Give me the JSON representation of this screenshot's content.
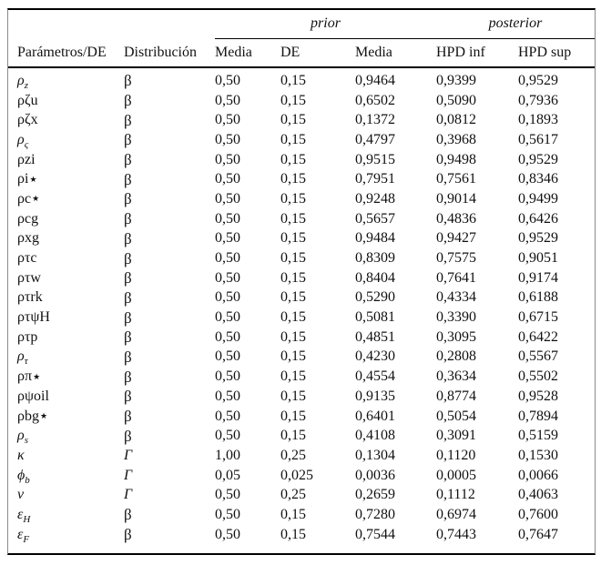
{
  "table": {
    "groups": {
      "prior": "prior",
      "posterior": "posterior"
    },
    "col_headers": [
      "Parámetros/DE",
      "Distribución",
      "Media",
      "DE",
      "Media",
      "HPD inf",
      "HPD sup"
    ],
    "rows": [
      {
        "param": [
          {
            "t": "ρ",
            "it": 1
          },
          {
            "t": "z",
            "sub": 1,
            "it": 1
          }
        ],
        "dist": "β",
        "prior_media": "0,50",
        "prior_de": "0,15",
        "post_media": "0,9464",
        "hpd_inf": "0,9399",
        "hpd_sup": "0,9529"
      },
      {
        "param": [
          {
            "t": "ρζu"
          }
        ],
        "dist": "β",
        "prior_media": "0,50",
        "prior_de": "0,15",
        "post_media": "0,6502",
        "hpd_inf": "0,5090",
        "hpd_sup": "0,7936"
      },
      {
        "param": [
          {
            "t": "ρζx"
          }
        ],
        "dist": "β",
        "prior_media": "0,50",
        "prior_de": "0,15",
        "post_media": "0,1372",
        "hpd_inf": "0,0812",
        "hpd_sup": "0,1893"
      },
      {
        "param": [
          {
            "t": "ρ",
            "it": 1
          },
          {
            "t": "ς",
            "sub": 1,
            "it": 1
          }
        ],
        "dist": "β",
        "prior_media": "0,50",
        "prior_de": "0,15",
        "post_media": "0,4797",
        "hpd_inf": "0,3968",
        "hpd_sup": "0,5617"
      },
      {
        "param": [
          {
            "t": "ρzi"
          }
        ],
        "dist": "β",
        "prior_media": "0,50",
        "prior_de": "0,15",
        "post_media": "0,9515",
        "hpd_inf": "0,9498",
        "hpd_sup": "0,9529"
      },
      {
        "param": [
          {
            "t": "ρi"
          },
          {
            "t": "★",
            "star": 1
          }
        ],
        "dist": "β",
        "prior_media": "0,50",
        "prior_de": "0,15",
        "post_media": "0,7951",
        "hpd_inf": "0,7561",
        "hpd_sup": "0,8346"
      },
      {
        "param": [
          {
            "t": "ρc"
          },
          {
            "t": "★",
            "star": 1
          }
        ],
        "dist": "β",
        "prior_media": "0,50",
        "prior_de": "0,15",
        "post_media": "0,9248",
        "hpd_inf": "0,9014",
        "hpd_sup": "0,9499"
      },
      {
        "param": [
          {
            "t": "ρcg"
          }
        ],
        "dist": "β",
        "prior_media": "0,50",
        "prior_de": "0,15",
        "post_media": "0,5657",
        "hpd_inf": "0,4836",
        "hpd_sup": "0,6426"
      },
      {
        "param": [
          {
            "t": "ρxg"
          }
        ],
        "dist": "β",
        "prior_media": "0,50",
        "prior_de": "0,15",
        "post_media": "0,9484",
        "hpd_inf": "0,9427",
        "hpd_sup": "0,9529"
      },
      {
        "param": [
          {
            "t": "ρτc"
          }
        ],
        "dist": "β",
        "prior_media": "0,50",
        "prior_de": "0,15",
        "post_media": "0,8309",
        "hpd_inf": "0,7575",
        "hpd_sup": "0,9051"
      },
      {
        "param": [
          {
            "t": "ρτw"
          }
        ],
        "dist": "β",
        "prior_media": "0,50",
        "prior_de": "0,15",
        "post_media": "0,8404",
        "hpd_inf": "0,7641",
        "hpd_sup": "0,9174"
      },
      {
        "param": [
          {
            "t": "ρτrk"
          }
        ],
        "dist": "β",
        "prior_media": "0,50",
        "prior_de": "0,15",
        "post_media": "0,5290",
        "hpd_inf": "0,4334",
        "hpd_sup": "0,6188"
      },
      {
        "param": [
          {
            "t": "ρτψH"
          }
        ],
        "dist": "β",
        "prior_media": "0,50",
        "prior_de": "0,15",
        "post_media": "0,5081",
        "hpd_inf": "0,3390",
        "hpd_sup": "0,6715"
      },
      {
        "param": [
          {
            "t": "ρτp"
          }
        ],
        "dist": "β",
        "prior_media": "0,50",
        "prior_de": "0,15",
        "post_media": "0,4851",
        "hpd_inf": "0,3095",
        "hpd_sup": "0,6422"
      },
      {
        "param": [
          {
            "t": "ρ",
            "it": 1
          },
          {
            "t": "τ",
            "sub": 1,
            "it": 1
          }
        ],
        "dist": "β",
        "prior_media": "0,50",
        "prior_de": "0,15",
        "post_media": "0,4230",
        "hpd_inf": "0,2808",
        "hpd_sup": "0,5567"
      },
      {
        "param": [
          {
            "t": "ρπ"
          },
          {
            "t": "★",
            "star": 1
          }
        ],
        "dist": "β",
        "prior_media": "0,50",
        "prior_de": "0,15",
        "post_media": "0,4554",
        "hpd_inf": "0,3634",
        "hpd_sup": "0,5502"
      },
      {
        "param": [
          {
            "t": "ρψoil"
          }
        ],
        "dist": "β",
        "prior_media": "0,50",
        "prior_de": "0,15",
        "post_media": "0,9135",
        "hpd_inf": "0,8774",
        "hpd_sup": "0,9528"
      },
      {
        "param": [
          {
            "t": "ρbg"
          },
          {
            "t": "★",
            "star": 1
          }
        ],
        "dist": "β",
        "prior_media": "0,50",
        "prior_de": "0,15",
        "post_media": "0,6401",
        "hpd_inf": "0,5054",
        "hpd_sup": "0,7894"
      },
      {
        "param": [
          {
            "t": "ρ",
            "it": 1
          },
          {
            "t": "s",
            "sub": 1,
            "it": 1
          }
        ],
        "dist": "β",
        "prior_media": "0,50",
        "prior_de": "0,15",
        "post_media": "0,4108",
        "hpd_inf": "0,3091",
        "hpd_sup": "0,5159"
      },
      {
        "param": [
          {
            "t": "κ",
            "it": 1
          }
        ],
        "dist": "Γ",
        "dist_it": 1,
        "prior_media": "1,00",
        "prior_de": "0,25",
        "post_media": "0,1304",
        "hpd_inf": "0,1120",
        "hpd_sup": "0,1530"
      },
      {
        "param": [
          {
            "t": "ϕ",
            "it": 1
          },
          {
            "t": "b",
            "sub": 1,
            "it": 1
          }
        ],
        "dist": "Γ",
        "dist_it": 1,
        "prior_media": "0,05",
        "prior_de": "0,025",
        "post_media": "0,0036",
        "hpd_inf": "0,0005",
        "hpd_sup": "0,0066"
      },
      {
        "param": [
          {
            "t": "ν",
            "it": 1
          }
        ],
        "dist": "Γ",
        "dist_it": 1,
        "prior_media": "0,50",
        "prior_de": "0,25",
        "post_media": "0,2659",
        "hpd_inf": "0,1112",
        "hpd_sup": "0,4063"
      },
      {
        "param": [
          {
            "t": "ε",
            "it": 1
          },
          {
            "t": "H",
            "sub": 1,
            "it": 1
          }
        ],
        "dist": "β",
        "prior_media": "0,50",
        "prior_de": "0,15",
        "post_media": "0,7280",
        "hpd_inf": "0,6974",
        "hpd_sup": "0,7600"
      },
      {
        "param": [
          {
            "t": "ε",
            "it": 1
          },
          {
            "t": "F",
            "sub": 1,
            "it": 1
          }
        ],
        "dist": "β",
        "prior_media": "0,50",
        "prior_de": "0,15",
        "post_media": "0,7544",
        "hpd_inf": "0,7443",
        "hpd_sup": "0,7647"
      }
    ]
  }
}
